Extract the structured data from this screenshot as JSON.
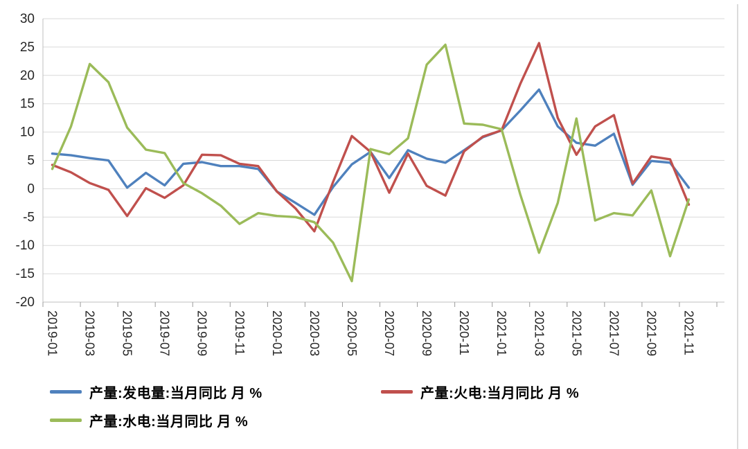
{
  "chart_data": {
    "type": "line",
    "x": [
      "2019-01",
      "2019-02",
      "2019-03",
      "2019-04",
      "2019-05",
      "2019-06",
      "2019-07",
      "2019-08",
      "2019-09",
      "2019-10",
      "2019-11",
      "2019-12",
      "2020-01",
      "2020-02",
      "2020-03",
      "2020-04",
      "2020-05",
      "2020-06",
      "2020-07",
      "2020-08",
      "2020-09",
      "2020-10",
      "2020-11",
      "2020-12",
      "2021-01",
      "2021-02",
      "2021-03",
      "2021-04",
      "2021-05",
      "2021-06",
      "2021-07",
      "2021-08",
      "2021-09",
      "2021-10",
      "2021-11"
    ],
    "x_tick_labels": [
      "2019-01",
      "2019-03",
      "2019-05",
      "2019-07",
      "2019-09",
      "2019-11",
      "2020-01",
      "2020-03",
      "2020-05",
      "2020-07",
      "2020-09",
      "2020-11",
      "2021-01",
      "2021-03",
      "2021-05",
      "2021-07",
      "2021-09",
      "2021-11"
    ],
    "x_label_every": 2,
    "series": [
      {
        "name": "产量:发电量:当月同比 月 %",
        "color": "#4F81BD",
        "values": [
          6.2,
          5.9,
          5.4,
          5.0,
          0.2,
          2.8,
          0.6,
          4.4,
          4.7,
          4.0,
          4.0,
          3.5,
          -0.5,
          -2.5,
          -4.6,
          0.3,
          4.3,
          6.5,
          1.9,
          6.8,
          5.3,
          4.6,
          6.8,
          9.1,
          10.3,
          13.8,
          17.5,
          11.0,
          8.1,
          7.6,
          9.7,
          0.7,
          4.9,
          4.6,
          0.2
        ]
      },
      {
        "name": "产量:火电:当月同比 月 %",
        "color": "#C0504D",
        "values": [
          4.2,
          2.9,
          1.0,
          -0.2,
          -4.8,
          0.1,
          -1.6,
          0.6,
          6.0,
          5.9,
          4.4,
          4.0,
          -0.5,
          -3.5,
          -7.5,
          1.2,
          9.3,
          6.5,
          -0.7,
          6.2,
          0.5,
          -1.2,
          6.6,
          9.2,
          10.3,
          18.5,
          25.7,
          12.5,
          6.0,
          11.0,
          13.0,
          0.9,
          5.7,
          5.2,
          -2.8
        ]
      },
      {
        "name": "产量:水电:当月同比 月 %",
        "color": "#9BBB59",
        "values": [
          3.5,
          11.0,
          22.0,
          18.8,
          10.8,
          6.9,
          6.3,
          1.0,
          -0.8,
          -3.0,
          -6.2,
          -4.3,
          -4.8,
          -5.0,
          -5.9,
          -9.5,
          -16.3,
          7.0,
          6.1,
          8.9,
          21.9,
          25.4,
          11.5,
          11.3,
          10.5,
          -1.0,
          -11.3,
          -2.5,
          12.4,
          -5.6,
          -4.3,
          -4.7,
          -0.3,
          -11.9,
          -1.9
        ]
      }
    ],
    "title": "",
    "xlabel": "",
    "ylabel": "",
    "ylim": [
      -20,
      30
    ],
    "yticks": [
      30,
      25,
      20,
      15,
      10,
      5,
      0,
      -5,
      -10,
      -15,
      -20
    ],
    "grid": "horizontal",
    "legend_position": "bottom"
  },
  "style": {
    "gridline_color": "#d9d9d9",
    "axis_line_color": "#bfbfbf",
    "tick_color": "#9b9b9b",
    "label_color": "#262626"
  }
}
